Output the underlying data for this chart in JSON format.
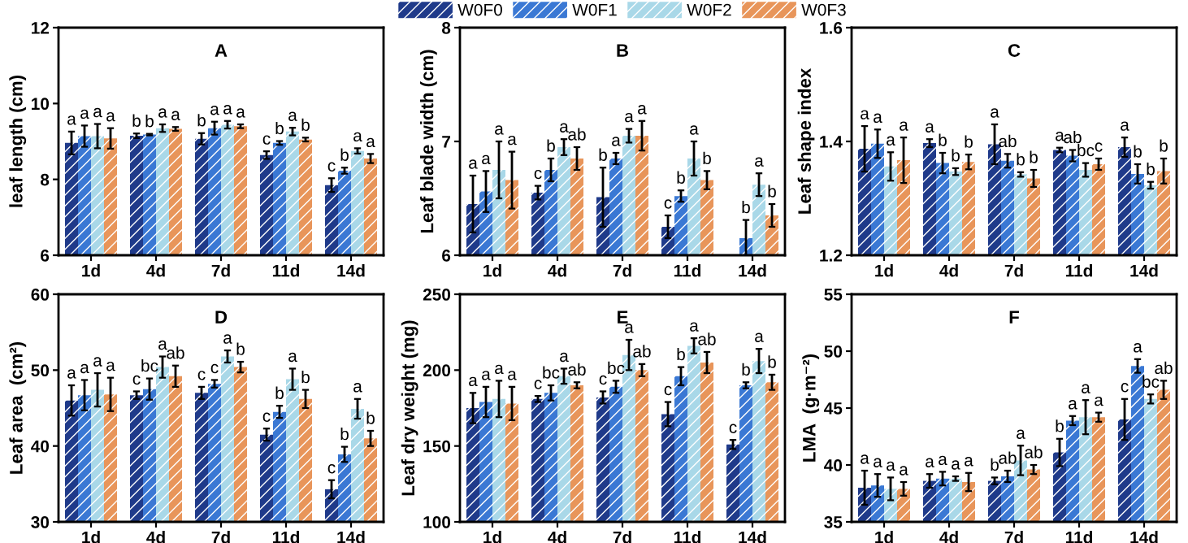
{
  "chart_data": [
    {
      "type": "bar",
      "title": "A",
      "ylabel": "leaf length (cm)",
      "categories": [
        "1d",
        "4d",
        "7d",
        "11d",
        "14d"
      ],
      "ylim": [
        6,
        12
      ],
      "yticks": [
        6,
        8,
        10,
        12
      ],
      "legend": false,
      "series": [
        {
          "color": "#1f3a8a",
          "values": [
            8.96,
            9.15,
            9.07,
            8.64,
            7.85
          ],
          "errors": [
            0.3,
            0.06,
            0.15,
            0.1,
            0.18
          ],
          "value_labels": [
            "a",
            "b",
            "b",
            "c",
            "c"
          ]
        },
        {
          "color": "#3a78d4",
          "values": [
            9.14,
            9.18,
            9.35,
            8.96,
            8.23
          ],
          "errors": [
            0.28,
            0.02,
            0.17,
            0.05,
            0.08
          ],
          "value_labels": [
            "a",
            "b",
            "a",
            "b",
            "b"
          ]
        },
        {
          "color": "#a9d8e8",
          "values": [
            9.14,
            9.35,
            9.44,
            9.26,
            8.75
          ],
          "errors": [
            0.32,
            0.1,
            0.1,
            0.1,
            0.07
          ],
          "value_labels": [
            "a",
            "a",
            "a",
            "a",
            "a"
          ]
        },
        {
          "color": "#e8955a",
          "values": [
            9.08,
            9.33,
            9.4,
            9.05,
            8.55
          ],
          "errors": [
            0.27,
            0.05,
            0.05,
            0.05,
            0.12
          ],
          "value_labels": [
            "a",
            "a",
            "a",
            "b",
            "a"
          ]
        }
      ]
    },
    {
      "type": "bar",
      "title": "B",
      "ylabel": "Leaf blade width (cm)",
      "categories": [
        "1d",
        "4d",
        "7d",
        "11d",
        "14d"
      ],
      "ylim": [
        6,
        8
      ],
      "yticks": [
        6,
        7,
        8
      ],
      "legend": "top",
      "series": [
        {
          "name": "W0F0",
          "color": "#1f3a8a",
          "values": [
            6.45,
            6.55,
            6.51,
            6.25,
            null
          ],
          "errors": [
            0.25,
            0.06,
            0.26,
            0.1,
            null
          ],
          "value_labels": [
            "a",
            "c",
            "b",
            "c",
            null
          ]
        },
        {
          "name": "W0F1",
          "color": "#3a78d4",
          "values": [
            6.56,
            6.75,
            6.85,
            6.52,
            6.15
          ],
          "errors": [
            0.18,
            0.1,
            0.05,
            0.05,
            0.16
          ],
          "value_labels": [
            "a",
            "b",
            "a",
            "b",
            "b"
          ]
        },
        {
          "name": "W0F2",
          "color": "#a9d8e8",
          "values": [
            6.75,
            6.95,
            7.05,
            6.85,
            6.62
          ],
          "errors": [
            0.25,
            0.07,
            0.06,
            0.15,
            0.1
          ],
          "value_labels": [
            "a",
            "a",
            "a",
            "a",
            "a"
          ]
        },
        {
          "name": "W0F3",
          "color": "#e8955a",
          "values": [
            6.66,
            6.85,
            7.05,
            6.66,
            6.35
          ],
          "errors": [
            0.25,
            0.1,
            0.13,
            0.08,
            0.1
          ],
          "value_labels": [
            "a",
            "ab",
            "a",
            "b",
            "b"
          ]
        }
      ]
    },
    {
      "type": "bar",
      "title": "C",
      "ylabel": "Leaf shape index",
      "categories": [
        "1d",
        "4d",
        "7d",
        "11d",
        "14d"
      ],
      "ylim": [
        1.2,
        1.6
      ],
      "yticks": [
        {
          "value": 1.2,
          "label": "1.2"
        },
        {
          "value": 1.4,
          "label": "1.4"
        },
        {
          "value": 1.6,
          "label": "1.6"
        }
      ],
      "legend": false,
      "series": [
        {
          "color": "#1f3a8a",
          "values": [
            1.387,
            1.397,
            1.395,
            1.385,
            1.39
          ],
          "errors": [
            0.04,
            0.007,
            0.035,
            0.004,
            0.017
          ],
          "value_labels": [
            "a",
            "a",
            "a",
            "a",
            "a"
          ]
        },
        {
          "color": "#3a78d4",
          "values": [
            1.396,
            1.362,
            1.366,
            1.375,
            1.343
          ],
          "errors": [
            0.025,
            0.018,
            0.012,
            0.01,
            0.017
          ],
          "value_labels": [
            "a",
            "b",
            "ab",
            "ab",
            "b"
          ]
        },
        {
          "color": "#a9d8e8",
          "values": [
            1.356,
            1.347,
            1.342,
            1.35,
            1.323
          ],
          "errors": [
            0.025,
            0.006,
            0.004,
            0.012,
            0.006
          ],
          "value_labels": [
            "a",
            "b",
            "b",
            "bc",
            "b"
          ]
        },
        {
          "color": "#e8955a",
          "values": [
            1.367,
            1.364,
            1.335,
            1.36,
            1.348
          ],
          "errors": [
            0.04,
            0.013,
            0.015,
            0.01,
            0.022
          ],
          "value_labels": [
            "a",
            "b",
            "b",
            "c",
            "b"
          ]
        }
      ]
    },
    {
      "type": "bar",
      "title": "D",
      "ylabel": "Leaf area  (cm²)",
      "categories": [
        "1d",
        "4d",
        "7d",
        "11d",
        "14d"
      ],
      "ylim": [
        30,
        60
      ],
      "yticks": [
        30,
        40,
        50,
        60
      ],
      "legend": false,
      "series": [
        {
          "color": "#1f3a8a",
          "values": [
            46,
            46.7,
            47,
            41.5,
            34.3
          ],
          "errors": [
            2,
            0.5,
            0.8,
            0.8,
            1.2
          ],
          "value_labels": [
            "a",
            "c",
            "c",
            "c",
            "c"
          ]
        },
        {
          "color": "#3a78d4",
          "values": [
            46.7,
            47.5,
            48.2,
            44.5,
            38.9
          ],
          "errors": [
            2,
            1.4,
            0.5,
            0.8,
            1
          ],
          "value_labels": [
            "a",
            "bc",
            "c",
            "b",
            "b"
          ]
        },
        {
          "color": "#a9d8e8",
          "values": [
            47.4,
            50.4,
            51.8,
            48.8,
            44.9
          ],
          "errors": [
            2.2,
            1.4,
            0.8,
            1.4,
            1.3
          ],
          "value_labels": [
            "a",
            "a",
            "a",
            "a",
            "a"
          ]
        },
        {
          "color": "#e8955a",
          "values": [
            46.8,
            49.2,
            50.4,
            46.2,
            41
          ],
          "errors": [
            2.2,
            1.4,
            0.7,
            1.2,
            1
          ],
          "value_labels": [
            "a",
            "ab",
            "b",
            "b",
            "b"
          ]
        }
      ]
    },
    {
      "type": "bar",
      "title": "E",
      "ylabel": "Leaf dry weight (mg)",
      "categories": [
        "1d",
        "4d",
        "7d",
        "11d",
        "14d"
      ],
      "ylim": [
        100,
        250
      ],
      "yticks": [
        100,
        150,
        200,
        250
      ],
      "legend": false,
      "series": [
        {
          "color": "#1f3a8a",
          "values": [
            175,
            181,
            182,
            171,
            151
          ],
          "errors": [
            10,
            2,
            4,
            8,
            3
          ],
          "value_labels": [
            "a",
            "c",
            "c",
            "c",
            "c"
          ]
        },
        {
          "color": "#3a78d4",
          "values": [
            179,
            185,
            189,
            196,
            190
          ],
          "errors": [
            10,
            5,
            4,
            6,
            2
          ],
          "value_labels": [
            "a",
            "bc",
            "bc",
            "b",
            "b"
          ]
        },
        {
          "color": "#a9d8e8",
          "values": [
            181,
            196,
            210,
            216,
            206
          ],
          "errors": [
            12,
            5,
            10,
            5,
            8
          ],
          "value_labels": [
            "a",
            "a",
            "a",
            "a",
            "a"
          ]
        },
        {
          "color": "#e8955a",
          "values": [
            178,
            190,
            200,
            205,
            192
          ],
          "errors": [
            11,
            2,
            4,
            7,
            5
          ],
          "value_labels": [
            "a",
            "ab",
            "ab",
            "ab",
            "b"
          ]
        }
      ]
    },
    {
      "type": "bar",
      "title": "F",
      "ylabel": "LMA  (g·m⁻²)",
      "categories": [
        "1d",
        "4d",
        "7d",
        "11d",
        "14d"
      ],
      "ylim": [
        35,
        55
      ],
      "yticks": [
        35,
        40,
        45,
        50,
        55
      ],
      "legend": false,
      "series": [
        {
          "color": "#1f3a8a",
          "values": [
            38,
            38.6,
            38.6,
            41.1,
            44
          ],
          "errors": [
            1.5,
            0.6,
            0.3,
            1.2,
            1.8
          ],
          "value_labels": [
            "a",
            "a",
            "b",
            "b",
            "c"
          ]
        },
        {
          "color": "#3a78d4",
          "values": [
            38.2,
            38.8,
            39,
            43.9,
            48.7
          ],
          "errors": [
            1,
            0.6,
            0.5,
            0.4,
            0.6
          ],
          "value_labels": [
            "a",
            "a",
            "ab",
            "a",
            "a"
          ]
        },
        {
          "color": "#a9d8e8",
          "values": [
            37.9,
            38.8,
            40.4,
            44.2,
            45.8
          ],
          "errors": [
            1,
            0.2,
            1.3,
            1.5,
            0.4
          ],
          "value_labels": [
            "a",
            "a",
            "a",
            "a",
            "bc"
          ]
        },
        {
          "color": "#e8955a",
          "values": [
            37.9,
            38.5,
            39.6,
            44.2,
            46.6
          ],
          "errors": [
            0.6,
            0.8,
            0.4,
            0.4,
            0.8
          ],
          "value_labels": [
            "a",
            "a",
            "ab",
            "a",
            "ab"
          ]
        }
      ]
    }
  ]
}
